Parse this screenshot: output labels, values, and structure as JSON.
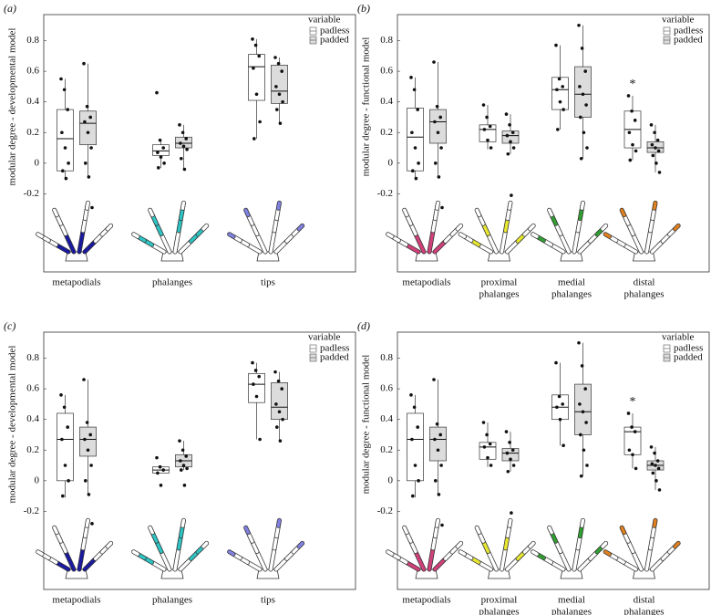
{
  "chart_data": [
    {
      "type": "box",
      "panel": "(a)",
      "ylabel": "modular degree - developmental model",
      "categories": [
        [
          "metapodials"
        ],
        [
          "phalanges"
        ],
        [
          "tips"
        ]
      ],
      "highlight_colors": [
        "#1a1aa0",
        "#2ec4c4",
        "#8080e0"
      ],
      "ylim": [
        -0.71,
        0.97
      ],
      "yticks": [
        0.8,
        0.6,
        0.4,
        0.2,
        0,
        -0.2
      ],
      "legend": {
        "title": "variable",
        "position": "top-right"
      },
      "series": [
        {
          "name": "padless",
          "color": "#ffffff",
          "boxes": [
            {
              "low": -0.11,
              "q1": -0.05,
              "median": 0.16,
              "q3": 0.35,
              "high": 0.55,
              "points": [
                0.55,
                0.48,
                0.35,
                0.2,
                0.1,
                0.0,
                -0.05,
                -0.1
              ]
            },
            {
              "low": -0.03,
              "q1": 0.05,
              "median": 0.08,
              "q3": 0.12,
              "high": 0.15,
              "points": [
                0.46,
                0.15,
                0.1,
                0.07,
                0.04,
                0.0,
                -0.03
              ]
            },
            {
              "low": 0.16,
              "q1": 0.41,
              "median": 0.63,
              "q3": 0.71,
              "high": 0.81,
              "points": [
                0.81,
                0.77,
                0.7,
                0.62,
                0.45,
                0.27,
                0.16
              ]
            }
          ]
        },
        {
          "name": "padded",
          "color": "#dcdcdc",
          "boxes": [
            {
              "low": -0.09,
              "q1": 0.12,
              "median": 0.26,
              "q3": 0.34,
              "high": 0.65,
              "points": [
                0.65,
                0.37,
                0.3,
                0.27,
                0.2,
                0.1,
                0.0,
                -0.09,
                -0.29
              ]
            },
            {
              "low": -0.04,
              "q1": 0.1,
              "median": 0.13,
              "q3": 0.17,
              "high": 0.25,
              "points": [
                0.25,
                0.2,
                0.16,
                0.13,
                0.11,
                0.09,
                0.03,
                -0.04
              ]
            },
            {
              "low": 0.26,
              "q1": 0.39,
              "median": 0.47,
              "q3": 0.64,
              "high": 0.69,
              "points": [
                0.69,
                0.65,
                0.6,
                0.5,
                0.45,
                0.4,
                0.35,
                0.26
              ]
            }
          ]
        }
      ]
    },
    {
      "type": "box",
      "panel": "(b)",
      "ylabel": "modular degree - functional model",
      "categories": [
        [
          "metapodials"
        ],
        [
          "proximal",
          "phalanges"
        ],
        [
          "medial",
          "phalanges"
        ],
        [
          "distal",
          "phalanges"
        ]
      ],
      "highlight_colors": [
        "#d0407a",
        "#e8e830",
        "#30a030",
        "#e08020"
      ],
      "ylim": [
        -0.71,
        0.97
      ],
      "yticks": [
        0.8,
        0.6,
        0.4,
        0.2,
        0,
        -0.2
      ],
      "legend": {
        "title": "variable",
        "position": "top-right"
      },
      "series": [
        {
          "name": "padless",
          "color": "#ffffff",
          "boxes": [
            {
              "low": -0.11,
              "q1": -0.05,
              "median": 0.17,
              "q3": 0.36,
              "high": 0.56,
              "points": [
                0.56,
                0.48,
                0.35,
                0.2,
                0.1,
                0.0,
                -0.05,
                -0.1
              ]
            },
            {
              "low": 0.09,
              "q1": 0.14,
              "median": 0.22,
              "q3": 0.25,
              "high": 0.38,
              "points": [
                0.38,
                0.3,
                0.24,
                0.22,
                0.15,
                0.1
              ]
            },
            {
              "low": 0.22,
              "q1": 0.35,
              "median": 0.48,
              "q3": 0.56,
              "high": 0.77,
              "points": [
                0.77,
                0.55,
                0.5,
                0.48,
                0.4,
                0.35,
                0.22
              ]
            },
            {
              "low": 0.02,
              "q1": 0.1,
              "median": 0.22,
              "q3": 0.34,
              "high": 0.44,
              "label": "*",
              "points": [
                0.44,
                0.34,
                0.28,
                0.2,
                0.12,
                0.08,
                0.02
              ]
            }
          ]
        },
        {
          "name": "padded",
          "color": "#dcdcdc",
          "boxes": [
            {
              "low": -0.09,
              "q1": 0.13,
              "median": 0.27,
              "q3": 0.35,
              "high": 0.66,
              "points": [
                0.66,
                0.37,
                0.3,
                0.27,
                0.2,
                0.1,
                0.0,
                -0.09,
                -0.29
              ]
            },
            {
              "low": 0.06,
              "q1": 0.13,
              "median": 0.18,
              "q3": 0.21,
              "high": 0.32,
              "points": [
                0.32,
                0.25,
                0.2,
                0.18,
                0.14,
                0.1,
                0.06,
                -0.21
              ]
            },
            {
              "low": 0.03,
              "q1": 0.3,
              "median": 0.45,
              "q3": 0.63,
              "high": 0.9,
              "points": [
                0.9,
                0.75,
                0.6,
                0.5,
                0.45,
                0.38,
                0.3,
                0.2,
                0.1,
                0.03
              ]
            },
            {
              "low": -0.06,
              "q1": 0.07,
              "median": 0.1,
              "q3": 0.14,
              "high": 0.25,
              "points": [
                0.25,
                0.2,
                0.15,
                0.12,
                0.1,
                0.08,
                0.05,
                0.0,
                -0.06
              ]
            }
          ]
        }
      ]
    },
    {
      "type": "box",
      "panel": "(c)",
      "ylabel": "modular degree - developmental model",
      "categories": [
        [
          "metapodials"
        ],
        [
          "phalanges"
        ],
        [
          "tips"
        ]
      ],
      "highlight_colors": [
        "#1a1aa0",
        "#2ec4c4",
        "#8080e0"
      ],
      "ylim": [
        -0.71,
        0.97
      ],
      "yticks": [
        0.8,
        0.6,
        0.4,
        0.2,
        0,
        -0.2
      ],
      "legend": {
        "title": "variable",
        "position": "top-right"
      },
      "series": [
        {
          "name": "padless",
          "color": "#ffffff",
          "boxes": [
            {
              "low": -0.11,
              "q1": 0.0,
              "median": 0.27,
              "q3": 0.44,
              "high": 0.56,
              "points": [
                0.56,
                0.48,
                0.35,
                0.27,
                0.1,
                0.0,
                -0.1
              ]
            },
            {
              "low": 0.05,
              "q1": 0.05,
              "median": 0.07,
              "q3": 0.09,
              "high": 0.1,
              "points": [
                0.15,
                0.09,
                0.07,
                0.05,
                -0.03
              ]
            },
            {
              "low": 0.27,
              "q1": 0.51,
              "median": 0.63,
              "q3": 0.7,
              "high": 0.77,
              "points": [
                0.77,
                0.72,
                0.68,
                0.63,
                0.55,
                0.27
              ]
            }
          ]
        },
        {
          "name": "padded",
          "color": "#dcdcdc",
          "boxes": [
            {
              "low": -0.09,
              "q1": 0.16,
              "median": 0.27,
              "q3": 0.35,
              "high": 0.66,
              "points": [
                0.66,
                0.38,
                0.3,
                0.27,
                0.2,
                0.1,
                0.0,
                -0.09,
                -0.28
              ]
            },
            {
              "low": 0.07,
              "q1": 0.09,
              "median": 0.13,
              "q3": 0.17,
              "high": 0.26,
              "points": [
                0.26,
                0.2,
                0.16,
                0.13,
                0.1,
                0.08,
                0.07,
                -0.03
              ]
            },
            {
              "low": 0.26,
              "q1": 0.4,
              "median": 0.48,
              "q3": 0.64,
              "high": 0.71,
              "points": [
                0.71,
                0.65,
                0.6,
                0.5,
                0.45,
                0.4,
                0.35,
                0.26
              ]
            }
          ]
        }
      ]
    },
    {
      "type": "box",
      "panel": "(d)",
      "ylabel": "modular degree - functional model",
      "categories": [
        [
          "metapodials"
        ],
        [
          "proximal",
          "phalanges"
        ],
        [
          "medial",
          "phalanges"
        ],
        [
          "distal",
          "phalanges"
        ]
      ],
      "highlight_colors": [
        "#d0407a",
        "#e8e830",
        "#30a030",
        "#e08020"
      ],
      "ylim": [
        -0.71,
        0.97
      ],
      "yticks": [
        0.8,
        0.6,
        0.4,
        0.2,
        0,
        -0.2
      ],
      "legend": {
        "title": "variable",
        "position": "top-right"
      },
      "series": [
        {
          "name": "padless",
          "color": "#ffffff",
          "boxes": [
            {
              "low": -0.11,
              "q1": 0.0,
              "median": 0.27,
              "q3": 0.44,
              "high": 0.56,
              "points": [
                0.56,
                0.48,
                0.35,
                0.27,
                0.1,
                0.0,
                -0.1
              ]
            },
            {
              "low": 0.09,
              "q1": 0.14,
              "median": 0.22,
              "q3": 0.25,
              "high": 0.38,
              "points": [
                0.38,
                0.3,
                0.24,
                0.22,
                0.15,
                0.1
              ]
            },
            {
              "low": 0.23,
              "q1": 0.4,
              "median": 0.48,
              "q3": 0.56,
              "high": 0.77,
              "points": [
                0.77,
                0.55,
                0.5,
                0.48,
                0.4,
                0.23
              ]
            },
            {
              "low": 0.08,
              "q1": 0.17,
              "median": 0.32,
              "q3": 0.35,
              "high": 0.44,
              "label": "*",
              "points": [
                0.44,
                0.35,
                0.32,
                0.2,
                0.17,
                0.08
              ]
            }
          ]
        },
        {
          "name": "padded",
          "color": "#dcdcdc",
          "boxes": [
            {
              "low": -0.09,
              "q1": 0.13,
              "median": 0.27,
              "q3": 0.35,
              "high": 0.66,
              "points": [
                0.66,
                0.37,
                0.3,
                0.27,
                0.2,
                0.1,
                0.0,
                -0.09,
                -0.29
              ]
            },
            {
              "low": 0.06,
              "q1": 0.13,
              "median": 0.18,
              "q3": 0.21,
              "high": 0.32,
              "points": [
                0.32,
                0.25,
                0.2,
                0.18,
                0.14,
                0.1,
                0.06,
                -0.21
              ]
            },
            {
              "low": 0.03,
              "q1": 0.3,
              "median": 0.45,
              "q3": 0.63,
              "high": 0.9,
              "points": [
                0.9,
                0.75,
                0.6,
                0.5,
                0.45,
                0.38,
                0.3,
                0.2,
                0.1,
                0.03
              ]
            },
            {
              "low": -0.06,
              "q1": 0.07,
              "median": 0.1,
              "q3": 0.13,
              "high": 0.22,
              "points": [
                0.22,
                0.18,
                0.13,
                0.11,
                0.1,
                0.08,
                0.05,
                0.0,
                -0.06
              ]
            }
          ]
        }
      ]
    }
  ]
}
